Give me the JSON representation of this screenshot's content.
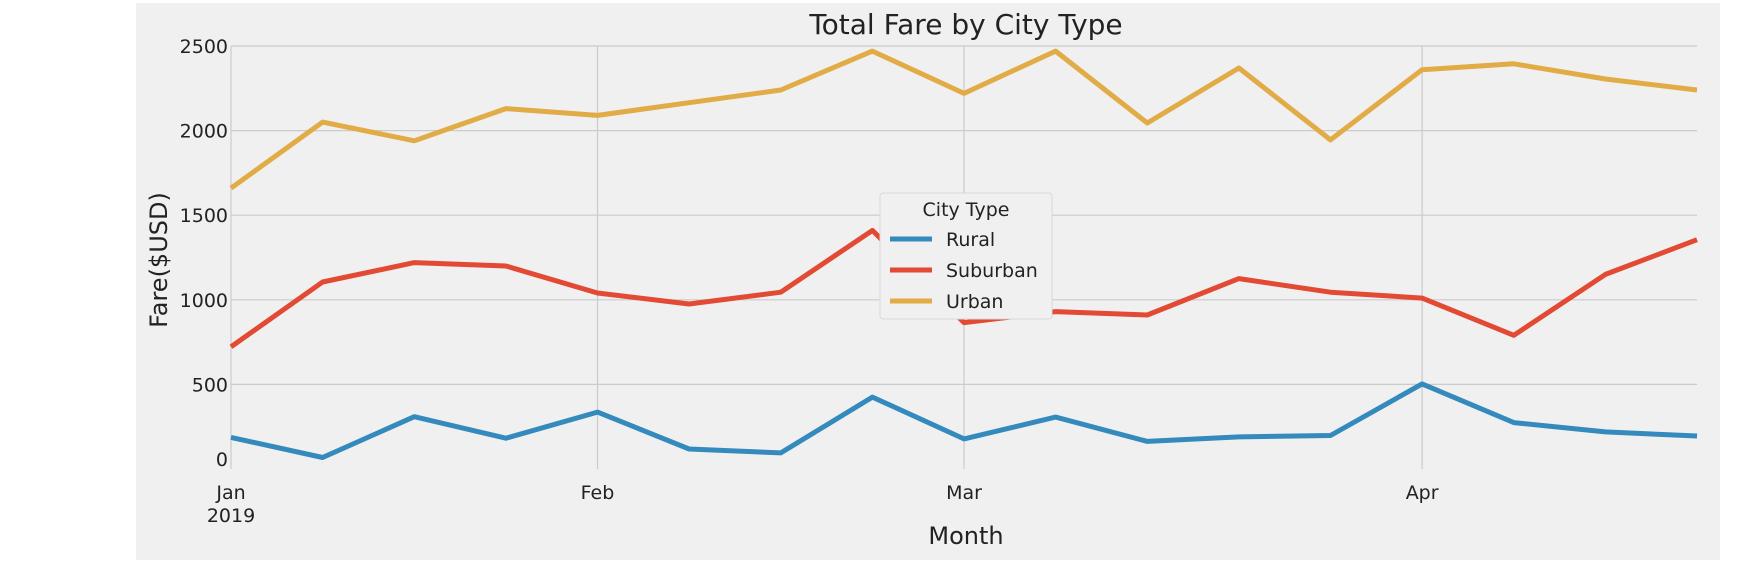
{
  "chart_data": {
    "type": "line",
    "title": "Total Fare by City Type",
    "xlabel": "Month",
    "ylabel": "Fare($USD)",
    "x": [
      "2019-01-06",
      "2019-01-13",
      "2019-01-20",
      "2019-01-27",
      "2019-02-03",
      "2019-02-10",
      "2019-02-17",
      "2019-02-24",
      "2019-03-03",
      "2019-03-10",
      "2019-03-17",
      "2019-03-24",
      "2019-03-31",
      "2019-04-07",
      "2019-04-14",
      "2019-04-21",
      "2019-04-28"
    ],
    "xlim": [
      "2019-01-06",
      "2019-04-28"
    ],
    "x_ticks": [
      {
        "date": "2019-01-06",
        "label": "Jan",
        "sublabel": "2019"
      },
      {
        "date": "2019-02-03",
        "label": "Feb",
        "sublabel": ""
      },
      {
        "date": "2019-03-03",
        "label": "Mar",
        "sublabel": ""
      },
      {
        "date": "2019-04-07",
        "label": "Apr",
        "sublabel": ""
      }
    ],
    "ylim": [
      0,
      2500
    ],
    "y_ticks": [
      0,
      500,
      1000,
      1500,
      2000,
      2500
    ],
    "grid": true,
    "legend": {
      "title": "City Type",
      "placement": "center"
    },
    "series": [
      {
        "name": "Rural",
        "color": "#348ABD",
        "values": [
          187,
          68,
          309,
          182,
          336,
          118,
          95,
          425,
          178,
          307,
          163,
          190,
          198,
          503,
          274,
          219,
          195
        ]
      },
      {
        "name": "Suburban",
        "color": "#E24A33",
        "values": [
          722,
          1105,
          1220,
          1200,
          1040,
          975,
          1045,
          1410,
          865,
          930,
          910,
          1125,
          1045,
          1010,
          790,
          1150,
          1355
        ]
      },
      {
        "name": "Urban",
        "color": "#E1AB46",
        "values": [
          1660,
          2050,
          1940,
          2130,
          2090,
          2165,
          2240,
          2470,
          2220,
          2470,
          2045,
          2370,
          1945,
          2360,
          2395,
          2305,
          2240
        ]
      }
    ]
  }
}
